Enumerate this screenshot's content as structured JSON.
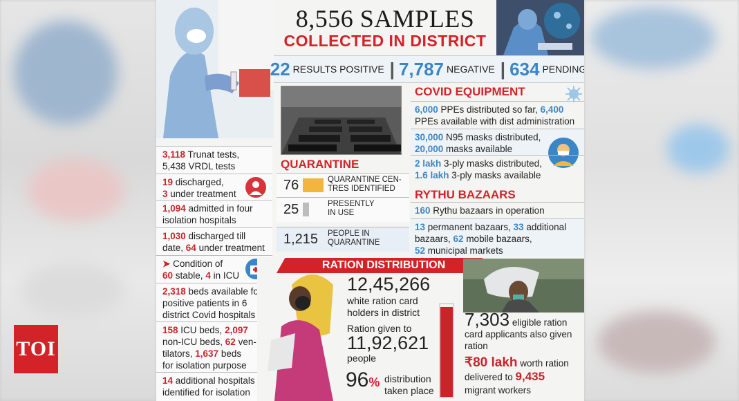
{
  "badge": "TOI",
  "header": {
    "title": "8,556 SAMPLES",
    "subtitle": "COLLECTED IN DISTRICT",
    "positive_num": "22",
    "positive_label": "RESULTS POSITIVE",
    "negative_num": "7,787",
    "negative_label": "NEGATIVE",
    "pending_num": "634",
    "pending_label": "PENDING",
    "separator": "|"
  },
  "left_facts": [
    {
      "a": "3,118",
      "b": " Trunat tests,",
      "c": "5,438 VRDL tests"
    },
    {
      "a": "19",
      "b": " discharged,",
      "c1": "3",
      "c2": " under treatment"
    },
    {
      "a": "1,094",
      "b": " admitted in four",
      "c": "isolation hospitals"
    },
    {
      "a": "1,030",
      "b": " discharged till",
      "c1": "date, ",
      "c2": "64",
      "c3": " under treatment"
    },
    {
      "arrow": "➤",
      "b": " Condition of",
      "c1": "60",
      "c2": " stable, ",
      "c3": "4",
      "c4": " in ICU"
    },
    {
      "a": "2,318",
      "b": " beds available for",
      "c": "positive patients in 6",
      "d": "district Covid hospitals"
    },
    {
      "a": "158",
      "b": " ICU beds, ",
      "b2": "2,097",
      "c": "non-ICU beds, ",
      "c2": "62",
      "c3": " ven-",
      "d": "tilators, ",
      "d2": "1,637",
      "d3": " beds",
      "e": "for isolation purpose"
    },
    {
      "a": "14",
      "b": " additional hospitals",
      "c": "identified for isolation"
    }
  ],
  "quarantine": {
    "title": "QUARANTINE CENTRES",
    "rows": [
      {
        "num": "76",
        "label1": "QUARANTINE CEN-",
        "label2": "TRES IDENTIFIED"
      },
      {
        "num": "25",
        "label1": "PRESENTLY",
        "label2": "IN USE"
      },
      {
        "num": "1,215",
        "label1": "PEOPLE IN",
        "label2": "QUARANTINE"
      }
    ]
  },
  "covid_equipment": {
    "title": "COVID EQUIPMENT",
    "items": [
      {
        "a": "6,000",
        "b": " PPEs distributed so far, ",
        "c": "6,400",
        "d": "PPEs available with dist administration"
      },
      {
        "a": "30,000",
        "b": " N95 masks distributed,",
        "c": "20,000",
        "d": " masks available"
      },
      {
        "a": "2 lakh",
        "b": " 3-ply masks distributed,",
        "c": "1.6 lakh",
        "d": " 3-ply masks available"
      }
    ]
  },
  "rythu": {
    "title": "RYTHU BAZAARS",
    "line1_num": "160",
    "line1_text": " Rythu bazaars in operation",
    "p1": "13",
    "p1t": " permanent bazaars, ",
    "p2": "33",
    "p2t": " additional",
    "p3t": "bazaars, ",
    "p3": "62",
    "p3t2": " mobile bazaars,",
    "p4": "52",
    "p4t": " municipal markets"
  },
  "ration": {
    "title": "RATION DISTRIBUTION",
    "white_cards_num": "12,45,266",
    "white_cards_text1": "white ration card",
    "white_cards_text2": "holders in district",
    "given_text": "Ration given to",
    "given_num": "11,92,621",
    "given_people": "people",
    "pct_num": "96",
    "pct_sign": "%",
    "pct_fraction": 0.96,
    "pct_text1": "distribution",
    "pct_text2": "taken place",
    "eligible_num": "7,303",
    "eligible_text1": " eligible ration",
    "eligible_text2": "card applicants also given",
    "eligible_text3": "ration",
    "worth_num": "₹80 lakh",
    "worth_text": " worth ration",
    "delivered_text": "delivered to ",
    "delivered_num": "9,435",
    "migrant_text": "migrant workers"
  },
  "colors": {
    "red": "#d32228",
    "blue": "#3b86c6"
  },
  "icons": {
    "doctor": "doctor-icon",
    "hospital": "hospital-icon",
    "mask": "masked-person-icon",
    "virus": "virus-icon"
  }
}
